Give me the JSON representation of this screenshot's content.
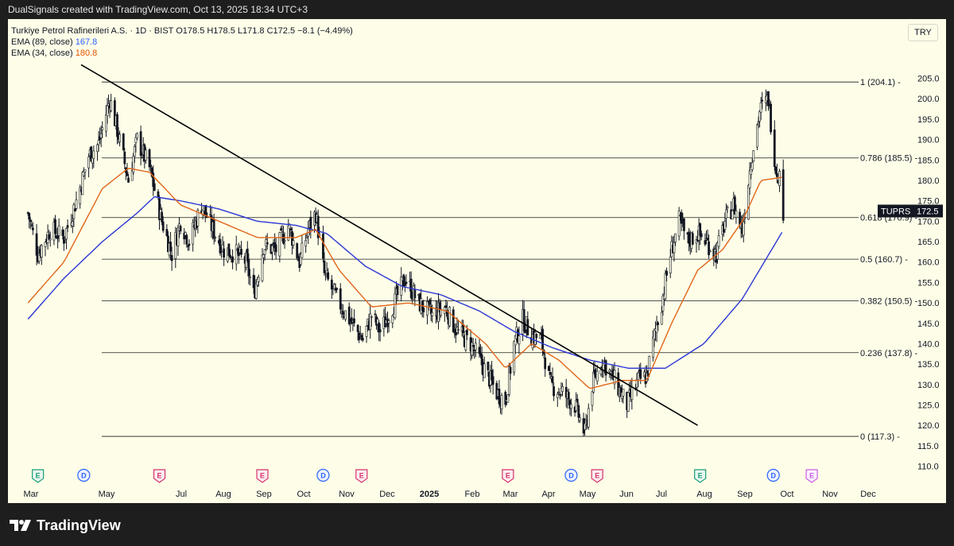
{
  "header": {
    "caption": "DualSignals created with TradingView.com, Oct 13, 2025 18:34 UTC+3"
  },
  "legend": {
    "symbol_line": "Turkiye Petrol Rafinerileri A.S. · 1D · BIST  O178.5  H178.5  L171.8  C172.5  −8.1 (−4.49%)",
    "ema89_label": "EMA (89, close)",
    "ema89_value": "167.8",
    "ema34_label": "EMA (34, close)",
    "ema34_value": "180.8"
  },
  "currency_button": "TRY",
  "footer": {
    "brand": "TradingView"
  },
  "colors": {
    "up": "#131722",
    "ema89": "#2b37d6",
    "ema34": "#e0661a",
    "background": "#fefee8"
  },
  "chart_data": {
    "type": "candlestick",
    "symbol": "TUPRS",
    "last_price": "172.5",
    "ylim": [
      107,
      209
    ],
    "y_ticks": [
      "205.0",
      "200.0",
      "195.0",
      "190.0",
      "185.0",
      "180.0",
      "175.0",
      "170.0",
      "165.0",
      "160.0",
      "155.0",
      "150.0",
      "145.0",
      "140.0",
      "135.0",
      "130.0",
      "125.0",
      "120.0",
      "115.0",
      "110.0"
    ],
    "x_labels": [
      {
        "label": "Mar",
        "bold": false
      },
      {
        "label": "May",
        "bold": false
      },
      {
        "label": "Jul",
        "bold": false
      },
      {
        "label": "Aug",
        "bold": false
      },
      {
        "label": "Sep",
        "bold": false
      },
      {
        "label": "Oct",
        "bold": false
      },
      {
        "label": "Nov",
        "bold": false
      },
      {
        "label": "Dec",
        "bold": false
      },
      {
        "label": "2025",
        "bold": true
      },
      {
        "label": "Feb",
        "bold": false
      },
      {
        "label": "Mar",
        "bold": false
      },
      {
        "label": "Apr",
        "bold": false
      },
      {
        "label": "May",
        "bold": false
      },
      {
        "label": "Jun",
        "bold": false
      },
      {
        "label": "Jul",
        "bold": false
      },
      {
        "label": "Aug",
        "bold": false
      },
      {
        "label": "Sep",
        "bold": false
      },
      {
        "label": "Oct",
        "bold": false
      },
      {
        "label": "Nov",
        "bold": false
      },
      {
        "label": "Dec",
        "bold": false
      }
    ],
    "fib_levels": [
      {
        "ratio": "1",
        "price": 204.1,
        "label": "1 (204.1)"
      },
      {
        "ratio": "0.786",
        "price": 185.5,
        "label": "0.786 (185.5)"
      },
      {
        "ratio": "0.618",
        "price": 170.9,
        "label": "0.618 (170.9)"
      },
      {
        "ratio": "0.5",
        "price": 160.7,
        "label": "0.5 (160.7)"
      },
      {
        "ratio": "0.382",
        "price": 150.5,
        "label": "0.382 (150.5)"
      },
      {
        "ratio": "0.236",
        "price": 137.8,
        "label": "0.236 (137.8)"
      },
      {
        "ratio": "0",
        "price": 117.3,
        "label": "0 (117.3)"
      }
    ],
    "trendline": {
      "start": {
        "date": "2024-04-10",
        "price": 206
      },
      "end": {
        "date": "2025-08-05",
        "price": 120
      }
    },
    "price_path": [
      [
        "2024-02-12",
        172
      ],
      [
        "2024-02-20",
        162
      ],
      [
        "2024-03-01",
        168
      ],
      [
        "2024-03-12",
        166
      ],
      [
        "2024-03-22",
        175
      ],
      [
        "2024-04-01",
        186
      ],
      [
        "2024-04-09",
        189
      ],
      [
        "2024-04-18",
        200
      ],
      [
        "2024-04-25",
        191
      ],
      [
        "2024-05-03",
        180
      ],
      [
        "2024-05-10",
        190
      ],
      [
        "2024-05-20",
        183
      ],
      [
        "2024-05-30",
        170
      ],
      [
        "2024-06-07",
        162
      ],
      [
        "2024-06-14",
        170
      ],
      [
        "2024-06-21",
        165
      ],
      [
        "2024-07-01",
        174
      ],
      [
        "2024-07-10",
        168
      ],
      [
        "2024-07-19",
        163
      ],
      [
        "2024-07-29",
        162
      ],
      [
        "2024-08-06",
        160
      ],
      [
        "2024-08-12",
        152
      ],
      [
        "2024-08-20",
        164
      ],
      [
        "2024-08-30",
        163
      ],
      [
        "2024-09-09",
        169
      ],
      [
        "2024-09-18",
        160
      ],
      [
        "2024-09-25",
        168
      ],
      [
        "2024-10-01",
        172
      ],
      [
        "2024-10-08",
        157
      ],
      [
        "2024-10-18",
        151
      ],
      [
        "2024-10-28",
        146
      ],
      [
        "2024-11-08",
        141
      ],
      [
        "2024-11-15",
        147
      ],
      [
        "2024-11-22",
        143
      ],
      [
        "2024-12-02",
        149
      ],
      [
        "2024-12-12",
        156
      ],
      [
        "2024-12-23",
        150
      ],
      [
        "2025-01-03",
        147
      ],
      [
        "2025-01-13",
        149
      ],
      [
        "2025-01-23",
        143
      ],
      [
        "2025-02-03",
        140
      ],
      [
        "2025-02-12",
        135
      ],
      [
        "2025-02-24",
        128
      ],
      [
        "2025-03-03",
        126
      ],
      [
        "2025-03-10",
        140
      ],
      [
        "2025-03-17",
        146
      ],
      [
        "2025-03-24",
        142
      ],
      [
        "2025-04-01",
        141
      ],
      [
        "2025-04-08",
        130
      ],
      [
        "2025-04-18",
        128
      ],
      [
        "2025-04-28",
        125
      ],
      [
        "2025-05-06",
        118
      ],
      [
        "2025-05-12",
        130
      ],
      [
        "2025-05-20",
        136
      ],
      [
        "2025-05-30",
        131
      ],
      [
        "2025-06-09",
        125
      ],
      [
        "2025-06-18",
        131
      ],
      [
        "2025-06-25",
        132
      ],
      [
        "2025-07-01",
        142
      ],
      [
        "2025-07-07",
        150
      ],
      [
        "2025-07-14",
        162
      ],
      [
        "2025-07-21",
        170
      ],
      [
        "2025-07-28",
        165
      ],
      [
        "2025-08-05",
        167
      ],
      [
        "2025-08-12",
        165
      ],
      [
        "2025-08-20",
        162
      ],
      [
        "2025-08-27",
        170
      ],
      [
        "2025-09-03",
        174
      ],
      [
        "2025-09-10",
        168
      ],
      [
        "2025-09-17",
        185
      ],
      [
        "2025-09-24",
        197
      ],
      [
        "2025-10-01",
        200
      ],
      [
        "2025-10-07",
        183
      ],
      [
        "2025-10-10",
        181
      ],
      [
        "2025-10-13",
        172.5
      ]
    ],
    "ema89_path": [
      [
        "2024-02-12",
        146
      ],
      [
        "2024-03-12",
        156
      ],
      [
        "2024-04-12",
        165
      ],
      [
        "2024-05-10",
        172
      ],
      [
        "2024-05-24",
        176
      ],
      [
        "2024-06-14",
        175
      ],
      [
        "2024-07-15",
        173
      ],
      [
        "2024-08-15",
        170
      ],
      [
        "2024-09-15",
        169
      ],
      [
        "2024-10-10",
        167
      ],
      [
        "2024-11-10",
        159
      ],
      [
        "2024-12-10",
        154
      ],
      [
        "2025-01-10",
        152
      ],
      [
        "2025-02-10",
        148
      ],
      [
        "2025-03-10",
        143
      ],
      [
        "2025-04-10",
        139
      ],
      [
        "2025-05-10",
        136
      ],
      [
        "2025-06-10",
        134
      ],
      [
        "2025-07-10",
        134
      ],
      [
        "2025-08-10",
        140
      ],
      [
        "2025-09-10",
        151
      ],
      [
        "2025-10-13",
        167.8
      ]
    ],
    "ema34_path": [
      [
        "2024-02-12",
        150
      ],
      [
        "2024-03-12",
        160
      ],
      [
        "2024-04-12",
        178
      ],
      [
        "2024-05-03",
        183
      ],
      [
        "2024-05-20",
        182
      ],
      [
        "2024-06-14",
        174
      ],
      [
        "2024-07-15",
        170
      ],
      [
        "2024-08-15",
        166
      ],
      [
        "2024-09-15",
        166
      ],
      [
        "2024-10-01",
        168
      ],
      [
        "2024-10-20",
        158
      ],
      [
        "2024-11-15",
        149
      ],
      [
        "2024-12-15",
        150
      ],
      [
        "2025-01-15",
        148
      ],
      [
        "2025-02-15",
        140
      ],
      [
        "2025-03-03",
        134
      ],
      [
        "2025-03-24",
        140
      ],
      [
        "2025-04-15",
        136
      ],
      [
        "2025-05-10",
        129
      ],
      [
        "2025-06-05",
        131
      ],
      [
        "2025-06-25",
        131
      ],
      [
        "2025-07-15",
        145
      ],
      [
        "2025-08-05",
        158
      ],
      [
        "2025-08-25",
        163
      ],
      [
        "2025-09-10",
        170
      ],
      [
        "2025-09-25",
        180
      ],
      [
        "2025-10-13",
        180.8
      ]
    ],
    "event_markers": [
      {
        "date": "2024-02-20",
        "letter": "E",
        "kind": "earnings-green"
      },
      {
        "date": "2024-03-28",
        "letter": "D",
        "kind": "dividend"
      },
      {
        "date": "2024-05-28",
        "letter": "E",
        "kind": "earnings-red"
      },
      {
        "date": "2024-08-19",
        "letter": "E",
        "kind": "earnings-red"
      },
      {
        "date": "2024-10-07",
        "letter": "D",
        "kind": "dividend"
      },
      {
        "date": "2024-11-07",
        "letter": "E",
        "kind": "earnings-red"
      },
      {
        "date": "2025-03-05",
        "letter": "E",
        "kind": "earnings-red"
      },
      {
        "date": "2025-04-25",
        "letter": "D",
        "kind": "dividend"
      },
      {
        "date": "2025-05-16",
        "letter": "E",
        "kind": "earnings-red"
      },
      {
        "date": "2025-08-07",
        "letter": "E",
        "kind": "earnings-green"
      },
      {
        "date": "2025-10-05",
        "letter": "D",
        "kind": "dividend"
      },
      {
        "date": "2025-11-05",
        "letter": "E",
        "kind": "earnings-future"
      }
    ]
  }
}
